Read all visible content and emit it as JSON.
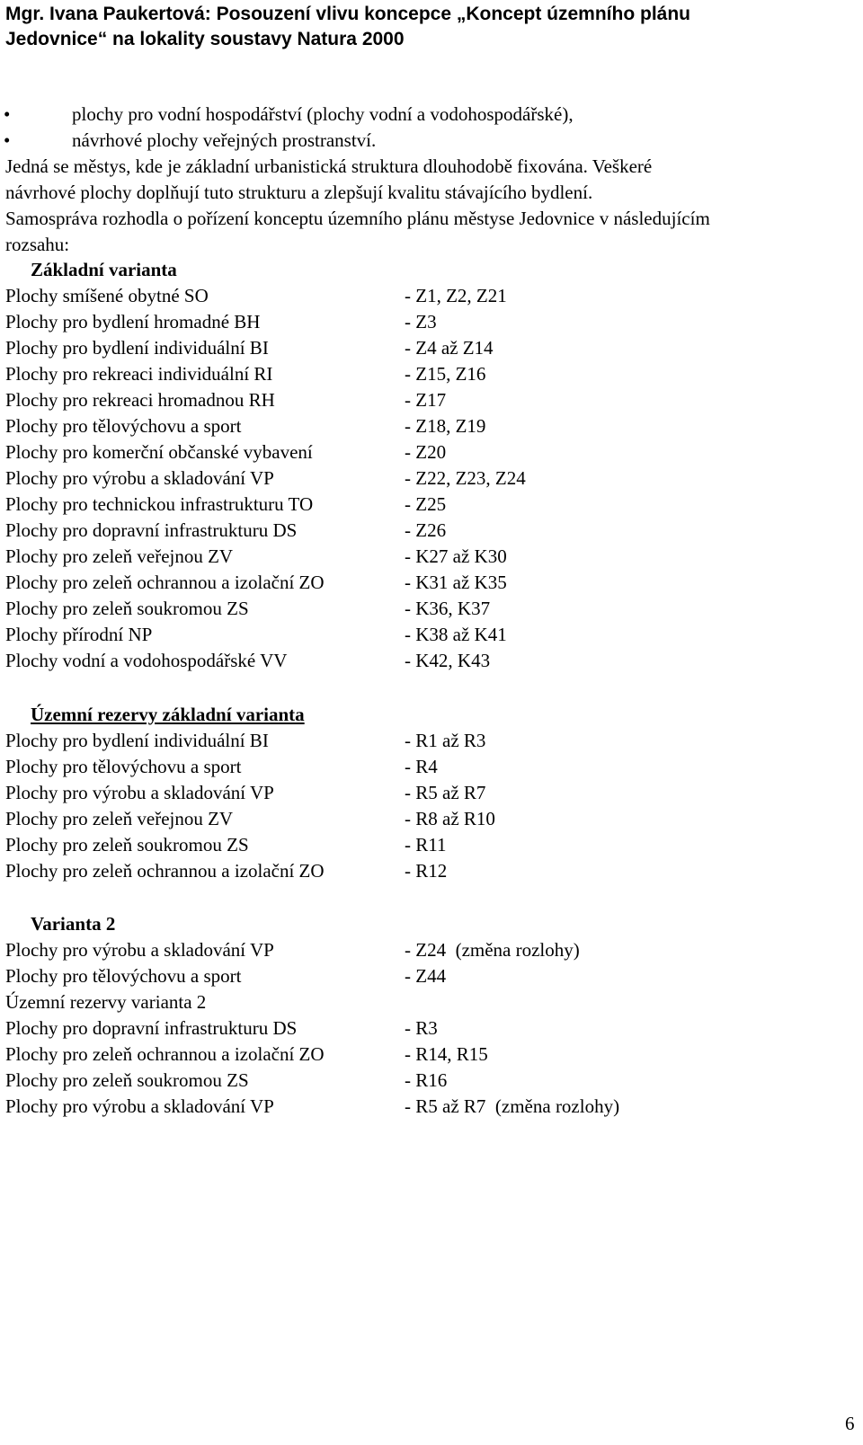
{
  "header": {
    "line1": "Mgr. Ivana Paukertová: Posouzení vlivu koncepce „Koncept územního plánu",
    "line2": "Jedovnice“ na lokality soustavy Natura 2000"
  },
  "bullets": [
    {
      "mark": "•",
      "text": "plochy pro vodní hospodářství (plochy vodní a vodohospodářské),"
    },
    {
      "mark": "•",
      "text": "návrhové plochy veřejných prostranství."
    }
  ],
  "paragraph": {
    "line1": "Jedná se městys, kde je základní urbanistická struktura dlouhodobě fixována. Veškeré",
    "line2": "návrhové plochy doplňují tuto strukturu a zlepšují kvalitu stávajícího bydlení.",
    "line3": "Samospráva rozhodla o pořízení konceptu územního plánu městyse Jedovnice v následujícím",
    "line4": "rozsahu:"
  },
  "section1": {
    "title": "Základní varianta",
    "rows": [
      {
        "label": "Plochy smíšené obytné SO",
        "value": "- Z1, Z2, Z21"
      },
      {
        "label": "Plochy pro bydlení hromadné BH",
        "value": "- Z3"
      },
      {
        "label": "Plochy pro bydlení individuální BI",
        "value": "- Z4 až Z14"
      },
      {
        "label": "Plochy pro rekreaci individuální RI",
        "value": "- Z15, Z16"
      },
      {
        "label": "Plochy pro rekreaci hromadnou RH",
        "value": "- Z17"
      },
      {
        "label": "Plochy pro tělovýchovu a sport",
        "value": "- Z18, Z19"
      },
      {
        "label": "Plochy pro komerční občanské vybavení",
        "value": "- Z20"
      },
      {
        "label": "Plochy pro výrobu a skladování VP",
        "value": "- Z22, Z23, Z24"
      },
      {
        "label": "Plochy pro technickou infrastrukturu TO",
        "value": "- Z25"
      },
      {
        "label": "Plochy pro dopravní infrastrukturu DS",
        "value": "- Z26"
      },
      {
        "label": "Plochy pro zeleň veřejnou ZV",
        "value": "- K27 až K30"
      },
      {
        "label": "Plochy pro zeleň ochrannou a izolační ZO",
        "value": "- K31 až K35"
      },
      {
        "label": "Plochy pro zeleň soukromou ZS",
        "value": "- K36, K37"
      },
      {
        "label": "Plochy přírodní NP",
        "value": "- K38 až K41"
      },
      {
        "label": "Plochy vodní a vodohospodářské VV",
        "value": "- K42, K43"
      }
    ]
  },
  "section2": {
    "title": "Územní rezervy základní varianta",
    "rows": [
      {
        "label": "Plochy pro bydlení individuální BI",
        "value": "- R1 až R3"
      },
      {
        "label": "Plochy pro tělovýchovu a sport",
        "value": "- R4"
      },
      {
        "label": "Plochy pro výrobu a skladování VP",
        "value": "- R5 až R7"
      },
      {
        "label": "Plochy pro zeleň veřejnou ZV",
        "value": "- R8 až R10"
      },
      {
        "label": "Plochy pro zeleň soukromou ZS",
        "value": "- R11"
      },
      {
        "label": "Plochy pro zeleň ochrannou a izolační ZO",
        "value": "- R12"
      }
    ]
  },
  "section3": {
    "title": "Varianta 2",
    "rows": [
      {
        "label": "Plochy pro výrobu a skladování VP",
        "value": "- Z24  (změna rozlohy)"
      },
      {
        "label": "Plochy pro tělovýchovu a sport",
        "value": "- Z44"
      },
      {
        "label": "Územní rezervy varianta 2",
        "value": ""
      },
      {
        "label": "Plochy pro dopravní infrastrukturu DS",
        "value": "- R3"
      },
      {
        "label": "Plochy pro zeleň ochrannou a izolační ZO",
        "value": "- R14, R15"
      },
      {
        "label": "Plochy pro zeleň soukromou ZS",
        "value": "- R16"
      },
      {
        "label": "Plochy pro výrobu a skladování VP",
        "value": "- R5 až R7  (změna rozlohy)"
      }
    ]
  },
  "page_number": "6"
}
